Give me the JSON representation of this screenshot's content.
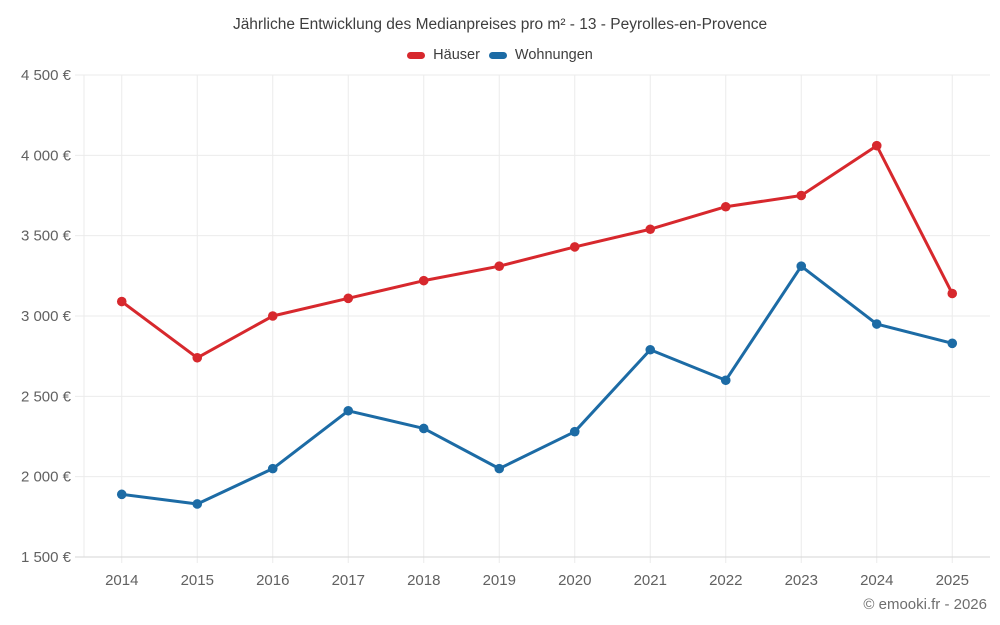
{
  "header": {
    "title": "Jährliche Entwicklung des Medianpreises pro m² - 13 - Peyrolles-en-Provence"
  },
  "legend": {
    "items": [
      {
        "label": "Häuser",
        "color": "#d7282d"
      },
      {
        "label": "Wohnungen",
        "color": "#1c6ba5"
      }
    ]
  },
  "footer": {
    "credit": "© emooki.fr - 2026"
  },
  "chart_data": {
    "type": "line",
    "title": "Jährliche Entwicklung des Medianpreises pro m² - 13 - Peyrolles-en-Provence",
    "categories": [
      "2014",
      "2015",
      "2016",
      "2017",
      "2018",
      "2019",
      "2020",
      "2021",
      "2022",
      "2023",
      "2024",
      "2025"
    ],
    "series": [
      {
        "name": "Häuser",
        "color": "#d7282d",
        "values": [
          3090,
          2740,
          3000,
          3110,
          3220,
          3310,
          3430,
          3540,
          3680,
          3750,
          4060,
          3140
        ]
      },
      {
        "name": "Wohnungen",
        "color": "#1c6ba5",
        "values": [
          1890,
          1830,
          2050,
          2410,
          2300,
          2050,
          2280,
          2790,
          2600,
          3310,
          2950,
          2830
        ]
      }
    ],
    "xlabel": "",
    "ylabel": "",
    "ylim": [
      1500,
      4500
    ],
    "y_tick_values": [
      1500,
      2000,
      2500,
      3000,
      3500,
      4000,
      4500
    ],
    "y_tick_labels": [
      "1 500 €",
      "2 000 €",
      "2 500 €",
      "3 000 €",
      "3 500 €",
      "4 000 €",
      "4 500 €"
    ],
    "grid": true,
    "legend_position": "top",
    "marker": "circle",
    "unit": "€"
  }
}
